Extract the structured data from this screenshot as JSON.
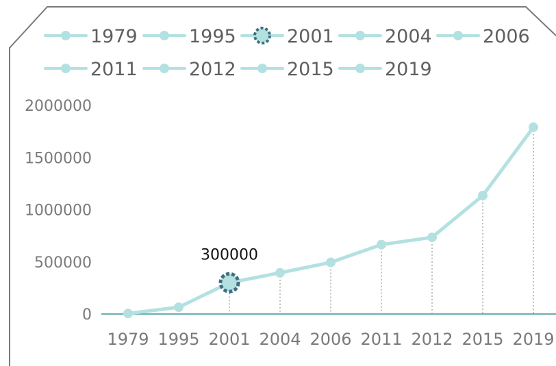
{
  "chart_data": {
    "type": "line",
    "title": "",
    "xlabel": "",
    "ylabel": "",
    "categories": [
      "1979",
      "1995",
      "2001",
      "2004",
      "2006",
      "2011",
      "2012",
      "2015",
      "2019"
    ],
    "values": [
      5000,
      65000,
      300000,
      395000,
      495000,
      665000,
      735000,
      1135000,
      1790000
    ],
    "ylim": [
      0,
      2000000
    ],
    "yticks": [
      "0",
      "500000",
      "1000000",
      "1500000",
      "2000000"
    ],
    "grid": false,
    "drop_lines": true,
    "legend": {
      "placement": "top",
      "entries": [
        "1979",
        "1995",
        "2001",
        "2004",
        "2006",
        "2011",
        "2012",
        "2015",
        "2019"
      ],
      "highlighted_index": 2
    },
    "highlight": {
      "index": 2,
      "label": "300000"
    },
    "colors": {
      "line": "#b3e1e1",
      "marker": "#b3e1e1",
      "highlight_marker": "#3f6f7e",
      "axis": "#6aaeb0",
      "frame": "#7a7a7a",
      "drop_line": "#aaaaaa"
    }
  }
}
